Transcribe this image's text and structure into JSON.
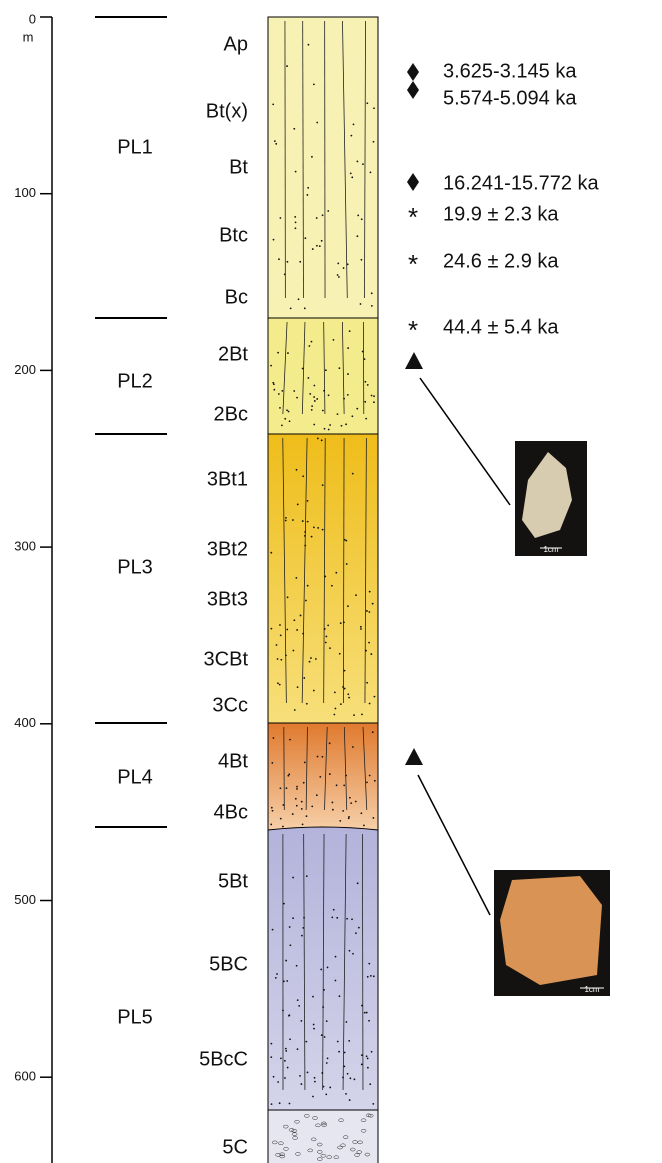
{
  "depth_axis": {
    "unit": "m",
    "ticks": [
      "0",
      "100",
      "200",
      "300",
      "400",
      "500",
      "600"
    ]
  },
  "units": [
    {
      "label": "PL1",
      "horizons": [
        "Ap",
        "Bt(x)",
        "Bt",
        "Btc",
        "Bc"
      ]
    },
    {
      "label": "PL2",
      "horizons": [
        "2Bt",
        "2Bc"
      ]
    },
    {
      "label": "PL3",
      "horizons": [
        "3Bt1",
        "3Bt2",
        "3Bt3",
        "3CBt",
        "3Cc"
      ]
    },
    {
      "label": "PL4",
      "horizons": [
        "4Bt",
        "4Bc"
      ]
    },
    {
      "label": "PL5",
      "horizons": [
        "5Bt",
        "5BC",
        "5BcC",
        "5C"
      ]
    }
  ],
  "dates": [
    "3.625-3.145 ka",
    "5.574-5.094 ka",
    "16.241-15.772 ka",
    "19.9 ± 2.3 ka",
    "24.6 ± 2.9 ka",
    "44.4 ± 5.4 ka"
  ],
  "artifacts": [
    {
      "scale": "1cm"
    },
    {
      "scale": "1cm"
    }
  ]
}
